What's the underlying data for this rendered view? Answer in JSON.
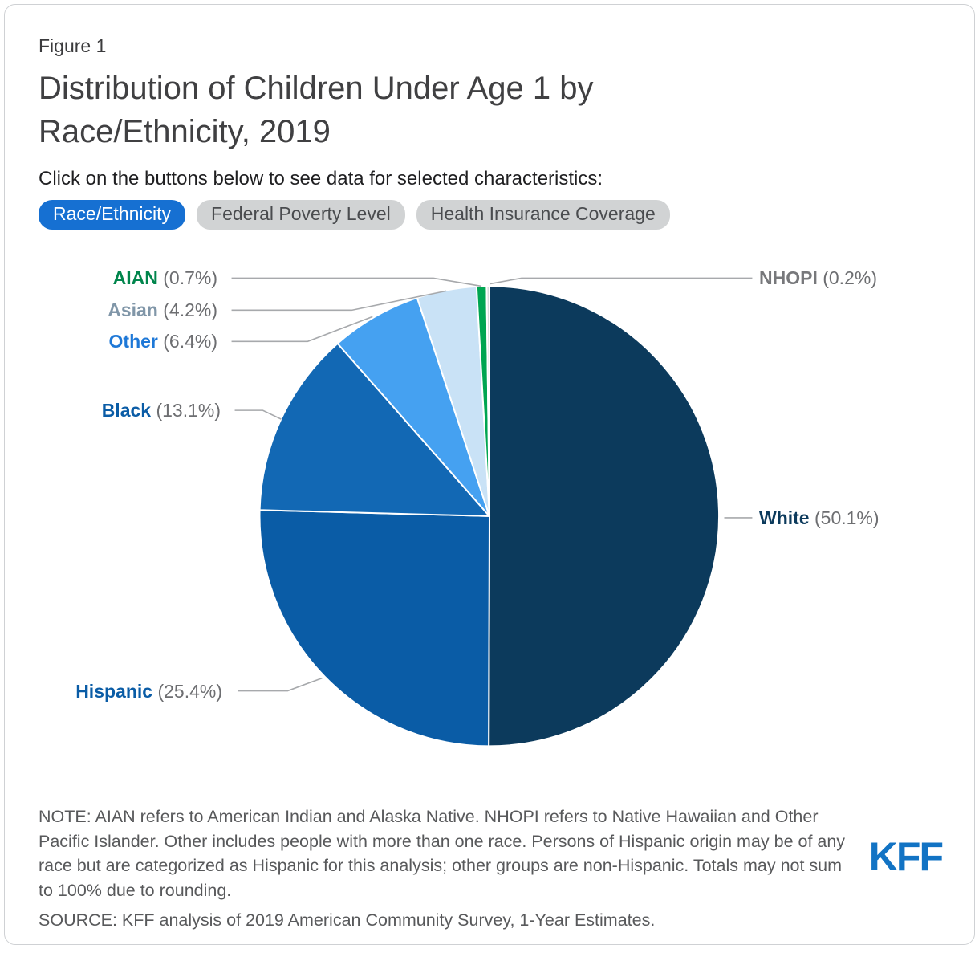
{
  "figure_label": "Figure 1",
  "title": "Distribution of Children Under Age 1 by Race/Ethnicity, 2019",
  "subtitle": "Click on the buttons below to see data for selected characteristics:",
  "buttons": [
    {
      "label": "Race/Ethnicity",
      "active": true
    },
    {
      "label": "Federal Poverty Level",
      "active": false
    },
    {
      "label": "Health Insurance Coverage",
      "active": false
    }
  ],
  "chart_data": {
    "type": "pie",
    "title": "Distribution of Children Under Age 1 by Race/Ethnicity, 2019",
    "unit": "percent",
    "start_angle_deg": 0,
    "direction": "clockwise",
    "slices": [
      {
        "label": "White",
        "value": 50.1,
        "value_label": "(50.1%)",
        "color": "#0C3A5C",
        "label_color": "#0C3A5C"
      },
      {
        "label": "Hispanic",
        "value": 25.4,
        "value_label": "(25.4%)",
        "color": "#0A5CA6",
        "label_color": "#0A5CA6"
      },
      {
        "label": "Black",
        "value": 13.1,
        "value_label": "(13.1%)",
        "color": "#1268B4",
        "label_color": "#0A5CA6"
      },
      {
        "label": "Other",
        "value": 6.4,
        "value_label": "(6.4%)",
        "color": "#45A1F1",
        "label_color": "#1E78D7"
      },
      {
        "label": "Asian",
        "value": 4.2,
        "value_label": "(4.2%)",
        "color": "#C9E2F6",
        "label_color": "#8096A8"
      },
      {
        "label": "AIAN",
        "value": 0.7,
        "value_label": "(0.7%)",
        "color": "#00A551",
        "label_color": "#00854C"
      },
      {
        "label": "NHOPI",
        "value": 0.2,
        "value_label": "(0.2%)",
        "color": "#D9DBDC",
        "label_color": "#77787B"
      }
    ]
  },
  "note": "NOTE: AIAN refers to American Indian and Alaska Native. NHOPI refers to Native Hawaiian and Other Pacific Islander. Other includes people with more than one race. Persons of Hispanic origin may be of any race but are categorized as Hispanic for this analysis; other groups are non-Hispanic. Totals may not sum to 100% due to rounding.",
  "source": "SOURCE: KFF analysis of 2019 American Community Survey, 1-Year Estimates.",
  "logo_text": "KFF"
}
